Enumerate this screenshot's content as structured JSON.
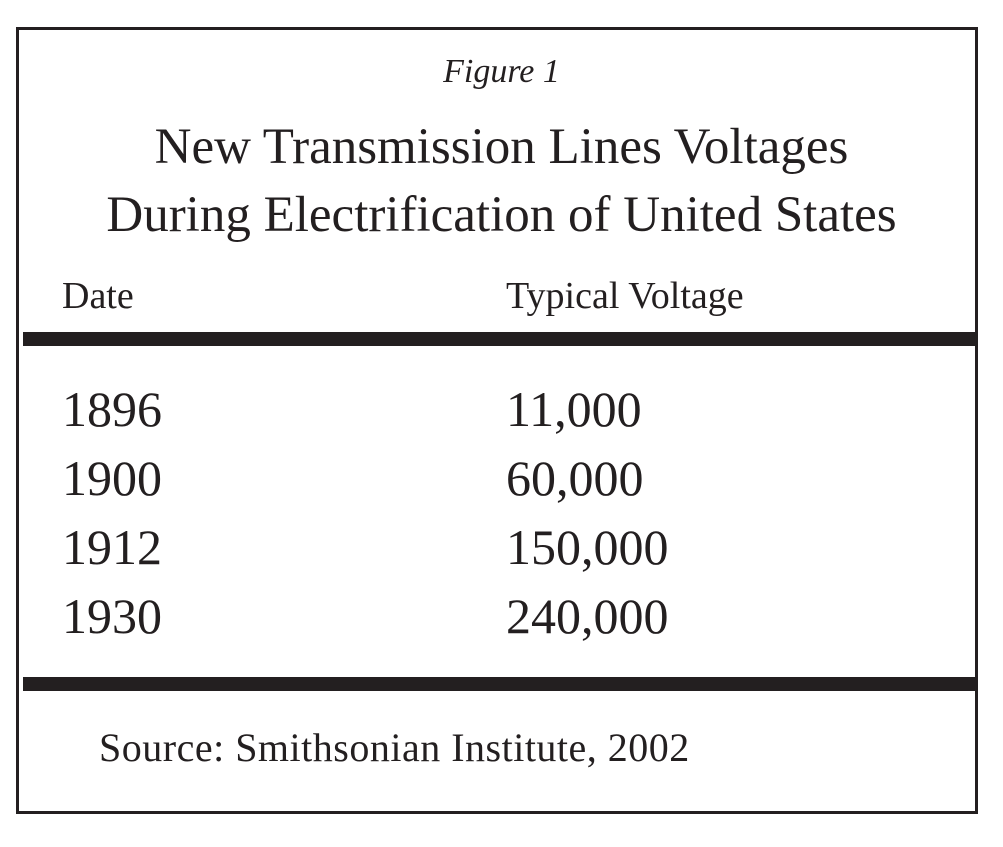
{
  "figure_label": "Figure 1",
  "title_lines": [
    "New Transmission Lines Voltages",
    "During Electrification of United States"
  ],
  "columns": [
    "Date",
    "Typical Voltage"
  ],
  "rows": [
    {
      "date": "1896",
      "voltage": "11,000"
    },
    {
      "date": "1900",
      "voltage": "60,000"
    },
    {
      "date": "1912",
      "voltage": "150,000"
    },
    {
      "date": "1930",
      "voltage": "240,000"
    }
  ],
  "source": "Source: Smithsonian Institute, 2002",
  "colors": {
    "ink": "#231f20",
    "background": "#ffffff"
  }
}
